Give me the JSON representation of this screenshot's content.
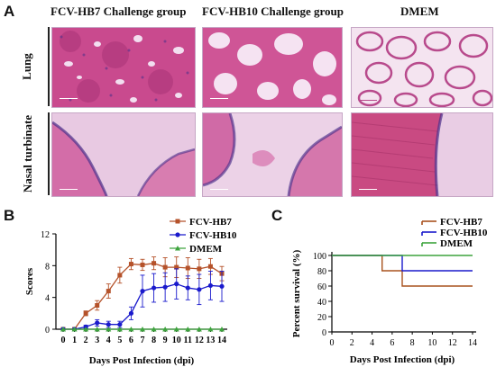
{
  "panel_labels": {
    "a": "A",
    "b": "B",
    "c": "C"
  },
  "histology": {
    "columns": [
      "FCV-HB7 Challenge group",
      "FCV-HB10 Challenge group",
      "DMEM"
    ],
    "rows": [
      "Lung",
      "Nasal turbinate"
    ],
    "colors": {
      "stain_pink": "#d45aa0",
      "stain_light": "#eac8e3",
      "nuclei": "#4b2f8a",
      "muscle": "#c23d6a"
    }
  },
  "chart_data": [
    {
      "type": "line",
      "panel": "B",
      "xlabel": "Days Post Infection (dpi)",
      "ylabel": "Scores",
      "x": [
        0,
        1,
        2,
        3,
        4,
        5,
        6,
        7,
        8,
        9,
        10,
        11,
        12,
        13,
        14
      ],
      "ylim": [
        0,
        12
      ],
      "yticks": [
        0,
        4,
        8,
        12
      ],
      "legend_position": "top-right",
      "series": [
        {
          "name": "FCV-HB7",
          "color": "#b5522a",
          "marker": "square",
          "values": [
            0,
            0,
            2,
            3,
            4.8,
            6.8,
            8.2,
            8.1,
            8.3,
            7.8,
            7.8,
            7.7,
            7.6,
            7.9,
            7.0
          ],
          "errors": [
            0,
            0,
            0.3,
            0.6,
            0.9,
            1.0,
            0.7,
            0.7,
            0.8,
            1.2,
            1.3,
            1.3,
            1.2,
            1.0,
            0.9
          ]
        },
        {
          "name": "FCV-HB10",
          "color": "#1a1acc",
          "marker": "circle",
          "values": [
            0,
            0,
            0.3,
            0.8,
            0.6,
            0.6,
            2.0,
            4.8,
            5.2,
            5.3,
            5.7,
            5.2,
            5.0,
            5.5,
            5.4
          ],
          "errors": [
            0,
            0,
            0.2,
            0.4,
            0.4,
            0.4,
            0.8,
            2.0,
            1.8,
            1.8,
            1.9,
            1.5,
            1.9,
            1.8,
            1.9
          ]
        },
        {
          "name": "DMEM",
          "color": "#3da33d",
          "marker": "triangle",
          "values": [
            0,
            0,
            0,
            0,
            0,
            0,
            0,
            0,
            0,
            0,
            0,
            0,
            0,
            0,
            0
          ],
          "errors": [
            0,
            0,
            0,
            0,
            0,
            0,
            0,
            0,
            0,
            0,
            0,
            0,
            0,
            0,
            0
          ]
        }
      ]
    },
    {
      "type": "line",
      "panel": "C",
      "xlabel": "Days Post Infection (dpi)",
      "ylabel": "Percent survival (%)",
      "xlim": [
        0,
        14
      ],
      "xticks": [
        0,
        2,
        4,
        6,
        8,
        10,
        12,
        14
      ],
      "ylim": [
        0,
        100
      ],
      "yticks": [
        0,
        20,
        40,
        60,
        80,
        100
      ],
      "step": true,
      "legend_position": "top-right",
      "series": [
        {
          "name": "FCV-HB7",
          "color": "#a8521e",
          "x": [
            0,
            5,
            5,
            7,
            7,
            14
          ],
          "values": [
            100,
            100,
            80,
            80,
            60,
            60
          ]
        },
        {
          "name": "FCV-HB10",
          "color": "#1a1acc",
          "x": [
            0,
            7,
            7,
            14
          ],
          "values": [
            100,
            100,
            80,
            80
          ]
        },
        {
          "name": "DMEM",
          "color": "#3da33d",
          "x": [
            0,
            14
          ],
          "values": [
            100,
            100
          ]
        }
      ]
    }
  ]
}
